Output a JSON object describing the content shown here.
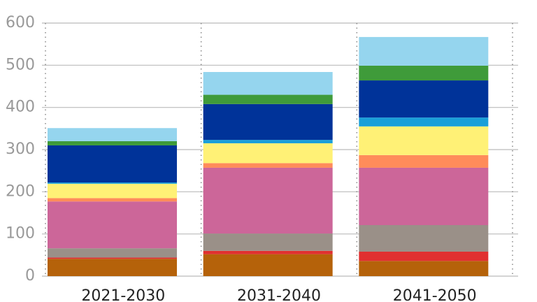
{
  "chart_data": {
    "type": "stacked_bar",
    "categories": [
      "2021-2030",
      "2031-2040",
      "2041-2050"
    ],
    "series": [
      {
        "color": "#b5620a",
        "values": [
          41,
          52,
          36
        ]
      },
      {
        "color": "#e03030",
        "values": [
          3,
          8,
          22
        ]
      },
      {
        "color": "#9a9088",
        "values": [
          22,
          41,
          63
        ]
      },
      {
        "color": "#cc6699",
        "values": [
          111,
          156,
          136
        ]
      },
      {
        "color": "#ff8c5a",
        "values": [
          8,
          11,
          30
        ]
      },
      {
        "color": "#fff176",
        "values": [
          34,
          47,
          68
        ]
      },
      {
        "color": "#1a9fd8",
        "values": [
          3,
          8,
          21
        ]
      },
      {
        "color": "#003399",
        "values": [
          88,
          85,
          88
        ]
      },
      {
        "color": "#3f9b3a",
        "values": [
          10,
          22,
          35
        ]
      },
      {
        "color": "#95d5ee",
        "values": [
          31,
          54,
          68
        ]
      }
    ],
    "ylim": [
      0,
      600
    ],
    "yticks": [
      0,
      100,
      200,
      300,
      400,
      500,
      600
    ],
    "grid": true
  }
}
